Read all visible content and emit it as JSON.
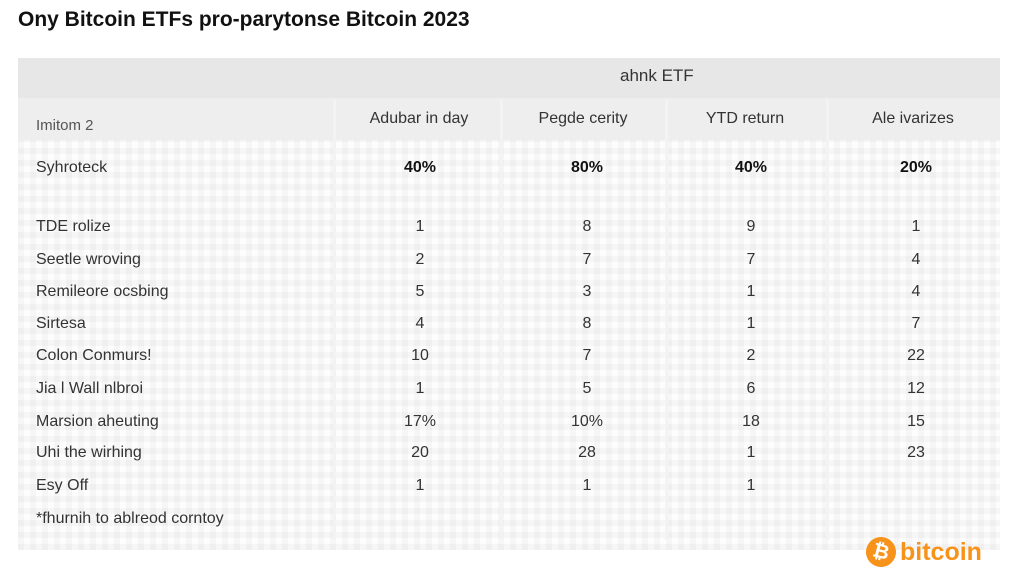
{
  "chart_data": {
    "type": "table",
    "title": "Ony Bitcoin ETFs pro-parytonse Bitcoin 2023",
    "super_header": "ahnk ETF",
    "corner_label": "Imitom 2",
    "columns": [
      "Adubar in day",
      "Pegde cerity",
      "YTD return",
      "Ale ivarizes"
    ],
    "rows": [
      {
        "label": "Syhroteck",
        "values": [
          "40%",
          "80%",
          "40%",
          "20%"
        ],
        "bold": true
      },
      {
        "label": "TDE rolize",
        "values": [
          "1",
          "8",
          "9",
          "1"
        ]
      },
      {
        "label": "Seetle wroving",
        "values": [
          "2",
          "7",
          "7",
          "4"
        ]
      },
      {
        "label": "Remileore ocsbing",
        "values": [
          "5",
          "3",
          "1",
          "4"
        ]
      },
      {
        "label": "Sirtesa",
        "values": [
          "4",
          "8",
          "1",
          "7"
        ]
      },
      {
        "label": "Colon Conmurs!",
        "values": [
          "10",
          "7",
          "2",
          "22"
        ]
      },
      {
        "label": "Jia l Wall nlbroi",
        "values": [
          "1",
          "5",
          "6",
          "12"
        ]
      },
      {
        "label": "Marsion aheuting",
        "values": [
          "17%",
          "10%",
          "18",
          "15"
        ]
      },
      {
        "label": "Uhi the wirhing",
        "values": [
          "20",
          "28",
          "1",
          "23"
        ]
      },
      {
        "label": "Esy Off",
        "values": [
          "1",
          "1",
          "1",
          ""
        ]
      }
    ],
    "footnote": "*fhurnih to ablreod corntoy"
  },
  "logo": {
    "symbol": "₿",
    "text": "bitcoin",
    "color": "#f7931a"
  }
}
